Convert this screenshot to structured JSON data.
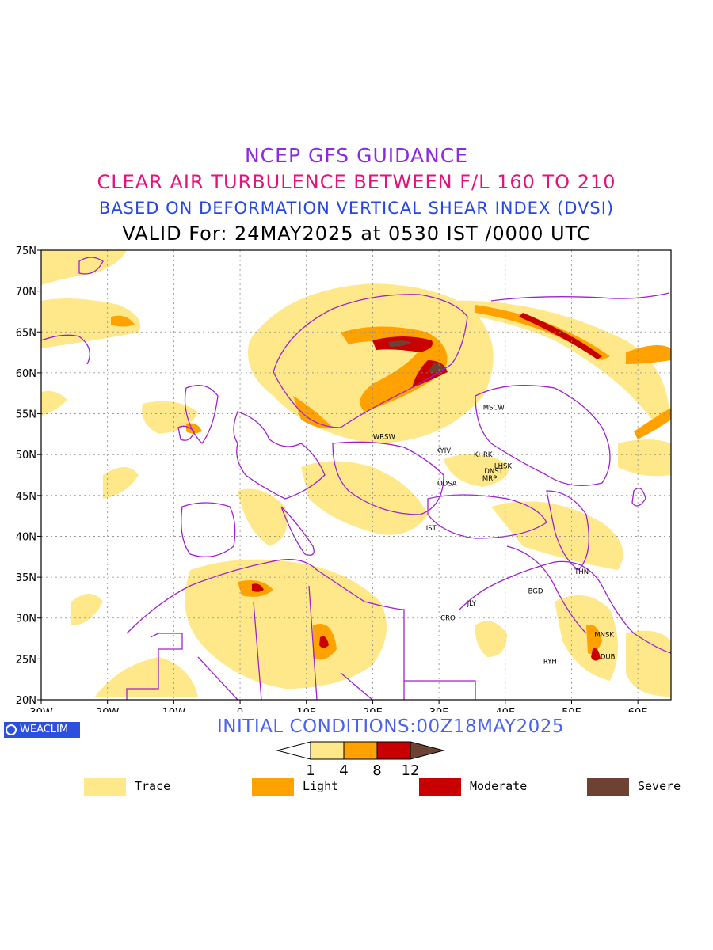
{
  "titles": {
    "line1": "NCEP GFS GUIDANCE",
    "line2": "CLEAR AIR TURBULENCE BETWEEN F/L 160 TO 210",
    "line3": "BASED ON DEFORMATION VERTICAL SHEAR INDEX (DVSI)",
    "line4": "VALID For: 24MAY2025 at 0530 IST /0000 UTC"
  },
  "map": {
    "lon_range": [
      -30,
      65
    ],
    "lat_range": [
      20,
      75
    ],
    "lat_ticks": [
      "20N",
      "25N",
      "30N",
      "35N",
      "40N",
      "45N",
      "50N",
      "55N",
      "60N",
      "65N",
      "70N",
      "75N"
    ],
    "lon_ticks": [
      "30W",
      "20W",
      "10W",
      "0",
      "10E",
      "20E",
      "30E",
      "40E",
      "50E",
      "60E"
    ],
    "grid": true,
    "cities": [
      {
        "name": "MSCW",
        "lon": 37.6,
        "lat": 55.8
      },
      {
        "name": "WRSW",
        "lon": 21.0,
        "lat": 52.2
      },
      {
        "name": "KYIV",
        "lon": 30.5,
        "lat": 50.5
      },
      {
        "name": "KHRK",
        "lon": 36.2,
        "lat": 50.0
      },
      {
        "name": "LHSK",
        "lon": 39.3,
        "lat": 48.6
      },
      {
        "name": "DNST",
        "lon": 37.8,
        "lat": 48.0
      },
      {
        "name": "MRP",
        "lon": 37.5,
        "lat": 47.1
      },
      {
        "name": "ODSA",
        "lon": 30.7,
        "lat": 46.5
      },
      {
        "name": "IST",
        "lon": 29.0,
        "lat": 41.0
      },
      {
        "name": "THN",
        "lon": 51.4,
        "lat": 35.7
      },
      {
        "name": "BGD",
        "lon": 44.4,
        "lat": 33.3
      },
      {
        "name": "JLY",
        "lon": 35.2,
        "lat": 31.8
      },
      {
        "name": "CRO",
        "lon": 31.2,
        "lat": 30.0
      },
      {
        "name": "MNSK",
        "lon": 54.4,
        "lat": 28.0
      },
      {
        "name": "DUB",
        "lon": 55.3,
        "lat": 25.3
      },
      {
        "name": "RYH",
        "lon": 46.7,
        "lat": 24.7
      }
    ]
  },
  "badge": "WEACLIM",
  "init_conditions": "INITIAL CONDITIONS:00Z18MAY2025",
  "colorbar": {
    "labels": [
      "1",
      "4",
      "8",
      "12"
    ],
    "colors": [
      "#ffffff",
      "#ffe88a",
      "#ffa200",
      "#c80000",
      "#6e4232"
    ]
  },
  "legend": [
    {
      "label": "Trace",
      "color": "#ffe88a"
    },
    {
      "label": "Light",
      "color": "#ffa200"
    },
    {
      "label": "Moderate",
      "color": "#c80000"
    },
    {
      "label": "Severe",
      "color": "#6e4232"
    }
  ]
}
